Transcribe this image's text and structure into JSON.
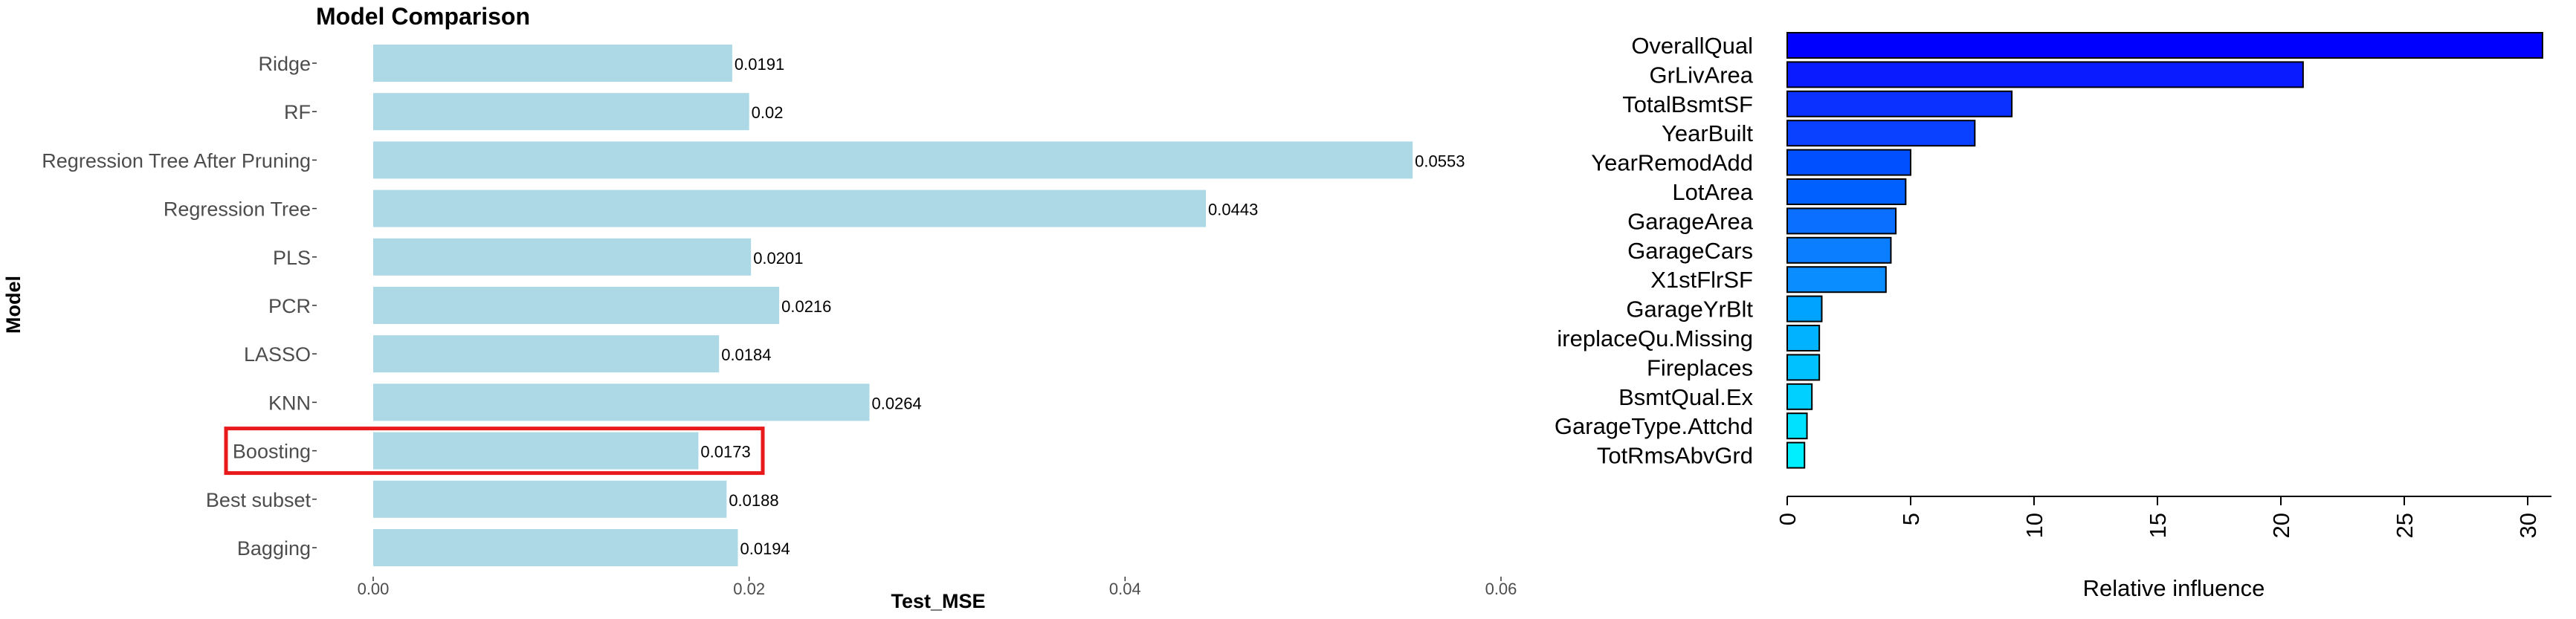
{
  "chart_data": [
    {
      "type": "bar",
      "orientation": "horizontal",
      "title": "Model Comparison",
      "xlabel": "Test_MSE",
      "ylabel": "Model",
      "xlim": [
        0,
        0.06
      ],
      "xticks": [
        "0.00",
        "0.02",
        "0.04",
        "0.06"
      ],
      "categories": [
        "Ridge",
        "RF",
        "Regression Tree After Pruning",
        "Regression Tree",
        "PLS",
        "PCR",
        "LASSO",
        "KNN",
        "Boosting",
        "Best subset",
        "Bagging"
      ],
      "values": [
        0.0191,
        0.02,
        0.0553,
        0.0443,
        0.0201,
        0.0216,
        0.0184,
        0.0264,
        0.0173,
        0.0188,
        0.0194
      ],
      "value_labels": [
        "0.0191",
        "0.02",
        "0.0553",
        "0.0443",
        "0.0201",
        "0.0216",
        "0.0184",
        "0.0264",
        "0.0173",
        "0.0188",
        "0.0194"
      ],
      "bar_color": "#add8e6",
      "highlighted_category": "Boosting",
      "highlight_color": "#e8191b",
      "grid": false
    },
    {
      "type": "bar",
      "orientation": "horizontal",
      "title": "",
      "xlabel": "Relative influence",
      "ylabel": "",
      "xlim": [
        0,
        31
      ],
      "xticks": [
        "0",
        "5",
        "10",
        "15",
        "20",
        "25",
        "30"
      ],
      "categories": [
        "OverallQual",
        "GrLivArea",
        "TotalBsmtSF",
        "YearBuilt",
        "YearRemodAdd",
        "LotArea",
        "GarageArea",
        "GarageCars",
        "X1stFlrSF",
        "GarageYrBlt",
        "ireplaceQu.Missing",
        "Fireplaces",
        "BsmtQual.Ex",
        "GarageType.Attchd",
        "TotRmsAbvGrd"
      ],
      "values": [
        30.6,
        20.9,
        9.1,
        7.6,
        5.0,
        4.8,
        4.4,
        4.2,
        4.0,
        1.4,
        1.3,
        1.3,
        1.0,
        0.8,
        0.7
      ],
      "bar_colors": [
        "#0000ff",
        "#0a1cff",
        "#0a31ff",
        "#0a40ff",
        "#0050ff",
        "#005fff",
        "#0a6eff",
        "#0a7eff",
        "#0a8dff",
        "#00a3ff",
        "#00b2ff",
        "#00c1ff",
        "#00d0ff",
        "#00e0ff",
        "#00efff"
      ],
      "grid": false
    }
  ]
}
